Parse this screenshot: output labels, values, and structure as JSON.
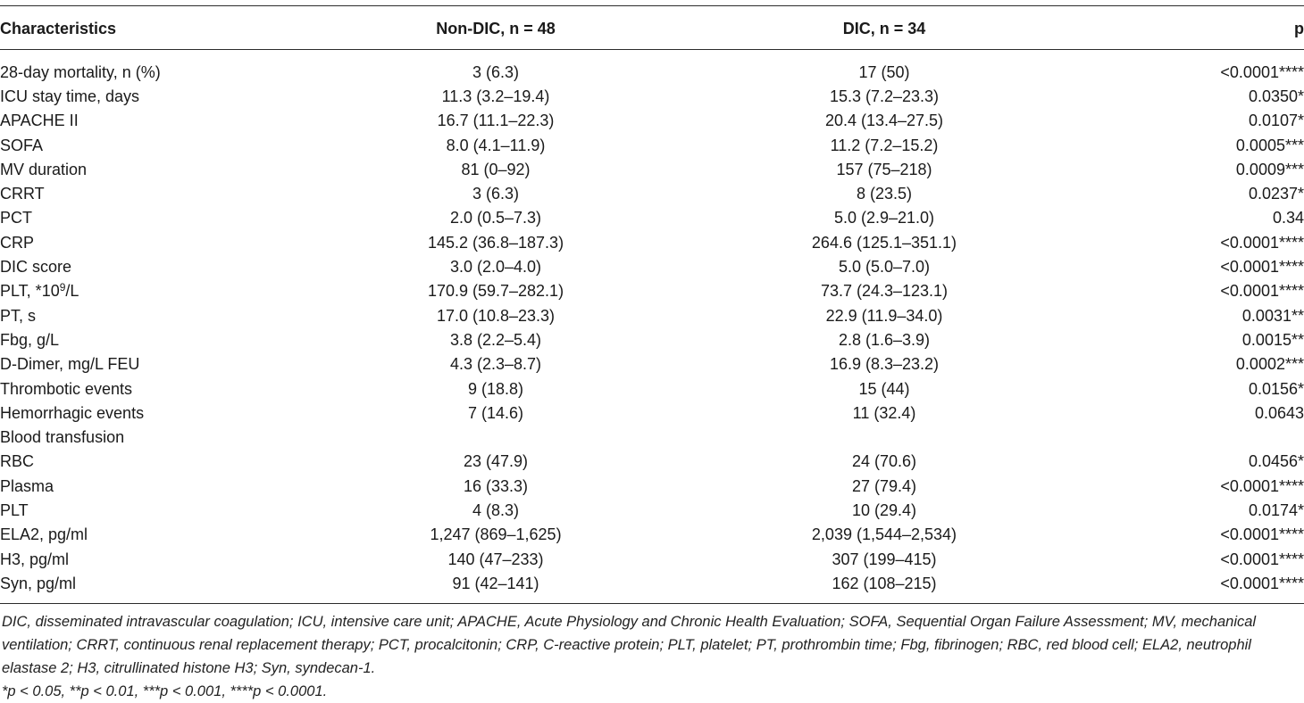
{
  "table": {
    "headers": [
      "Characteristics",
      "Non-DIC, n = 48",
      "DIC, n = 34",
      "p"
    ],
    "rows": [
      {
        "label": "28-day mortality, n (%)",
        "non_dic": "3 (6.3)",
        "dic": "17 (50)",
        "p": "<0.0001****"
      },
      {
        "label": "ICU stay time, days",
        "non_dic": "11.3 (3.2–19.4)",
        "dic": "15.3 (7.2–23.3)",
        "p": "0.0350*"
      },
      {
        "label": "APACHE II",
        "non_dic": "16.7 (11.1–22.3)",
        "dic": "20.4 (13.4–27.5)",
        "p": "0.0107*"
      },
      {
        "label": "SOFA",
        "non_dic": "8.0 (4.1–11.9)",
        "dic": "11.2 (7.2–15.2)",
        "p": "0.0005***"
      },
      {
        "label": "MV duration",
        "non_dic": "81 (0–92)",
        "dic": "157 (75–218)",
        "p": "0.0009***"
      },
      {
        "label": "CRRT",
        "non_dic": "3 (6.3)",
        "dic": "8 (23.5)",
        "p": "0.0237*"
      },
      {
        "label": "PCT",
        "non_dic": "2.0 (0.5–7.3)",
        "dic": "5.0 (2.9–21.0)",
        "p": "0.34"
      },
      {
        "label": "CRP",
        "non_dic": "145.2 (36.8–187.3)",
        "dic": "264.6 (125.1–351.1)",
        "p": "<0.0001****"
      },
      {
        "label": "DIC score",
        "non_dic": "3.0 (2.0–4.0)",
        "dic": "5.0 (5.0–7.0)",
        "p": "<0.0001****"
      },
      {
        "label_main": "PLT, *10",
        "label_sup": "9",
        "label_tail": "/L",
        "non_dic": "170.9 (59.7–282.1)",
        "dic": "73.7 (24.3–123.1)",
        "p": "<0.0001****"
      },
      {
        "label": "PT, s",
        "non_dic": "17.0 (10.8–23.3)",
        "dic": "22.9 (11.9–34.0)",
        "p": "0.0031**"
      },
      {
        "label": "Fbg, g/L",
        "non_dic": "3.8 (2.2–5.4)",
        "dic": "2.8 (1.6–3.9)",
        "p": "0.0015**"
      },
      {
        "label": "D-Dimer, mg/L FEU",
        "non_dic": "4.3 (2.3–8.7)",
        "dic": "16.9 (8.3–23.2)",
        "p": "0.0002***"
      },
      {
        "label": "Thrombotic events",
        "non_dic": "9 (18.8)",
        "dic": "15 (44)",
        "p": "0.0156*"
      },
      {
        "label": "Hemorrhagic events",
        "non_dic": "7 (14.6)",
        "dic": "11 (32.4)",
        "p": "0.0643"
      },
      {
        "label": "Blood transfusion",
        "non_dic": "",
        "dic": "",
        "p": ""
      },
      {
        "label": "RBC",
        "non_dic": "23 (47.9)",
        "dic": "24 (70.6)",
        "p": "0.0456*"
      },
      {
        "label": "Plasma",
        "non_dic": "16 (33.3)",
        "dic": "27 (79.4)",
        "p": "<0.0001****"
      },
      {
        "label": "PLT",
        "non_dic": "4 (8.3)",
        "dic": "10 (29.4)",
        "p": "0.0174*"
      },
      {
        "label": "ELA2, pg/ml",
        "non_dic": "1,247 (869–1,625)",
        "dic": "2,039 (1,544–2,534)",
        "p": "<0.0001****"
      },
      {
        "label": "H3, pg/ml",
        "non_dic": "140 (47–233)",
        "dic": "307 (199–415)",
        "p": "<0.0001****"
      },
      {
        "label": "Syn, pg/ml",
        "non_dic": "91 (42–141)",
        "dic": "162 (108–215)",
        "p": "<0.0001****"
      }
    ]
  },
  "footnotes": {
    "abbreviations": "DIC, disseminated intravascular coagulation; ICU, intensive care unit; APACHE, Acute Physiology and Chronic Health Evaluation; SOFA, Sequential Organ Failure Assessment; MV, mechanical ventilation; CRRT, continuous renal replacement therapy; PCT, procalcitonin; CRP, C-reactive protein; PLT, platelet; PT, prothrombin time; Fbg, fibrinogen; RBC, red blood cell; ELA2, neutrophil elastase 2; H3, citrullinated histone H3; Syn, syndecan-1.",
    "significance": "*p < 0.05, **p < 0.01, ***p < 0.001, ****p < 0.0001."
  }
}
